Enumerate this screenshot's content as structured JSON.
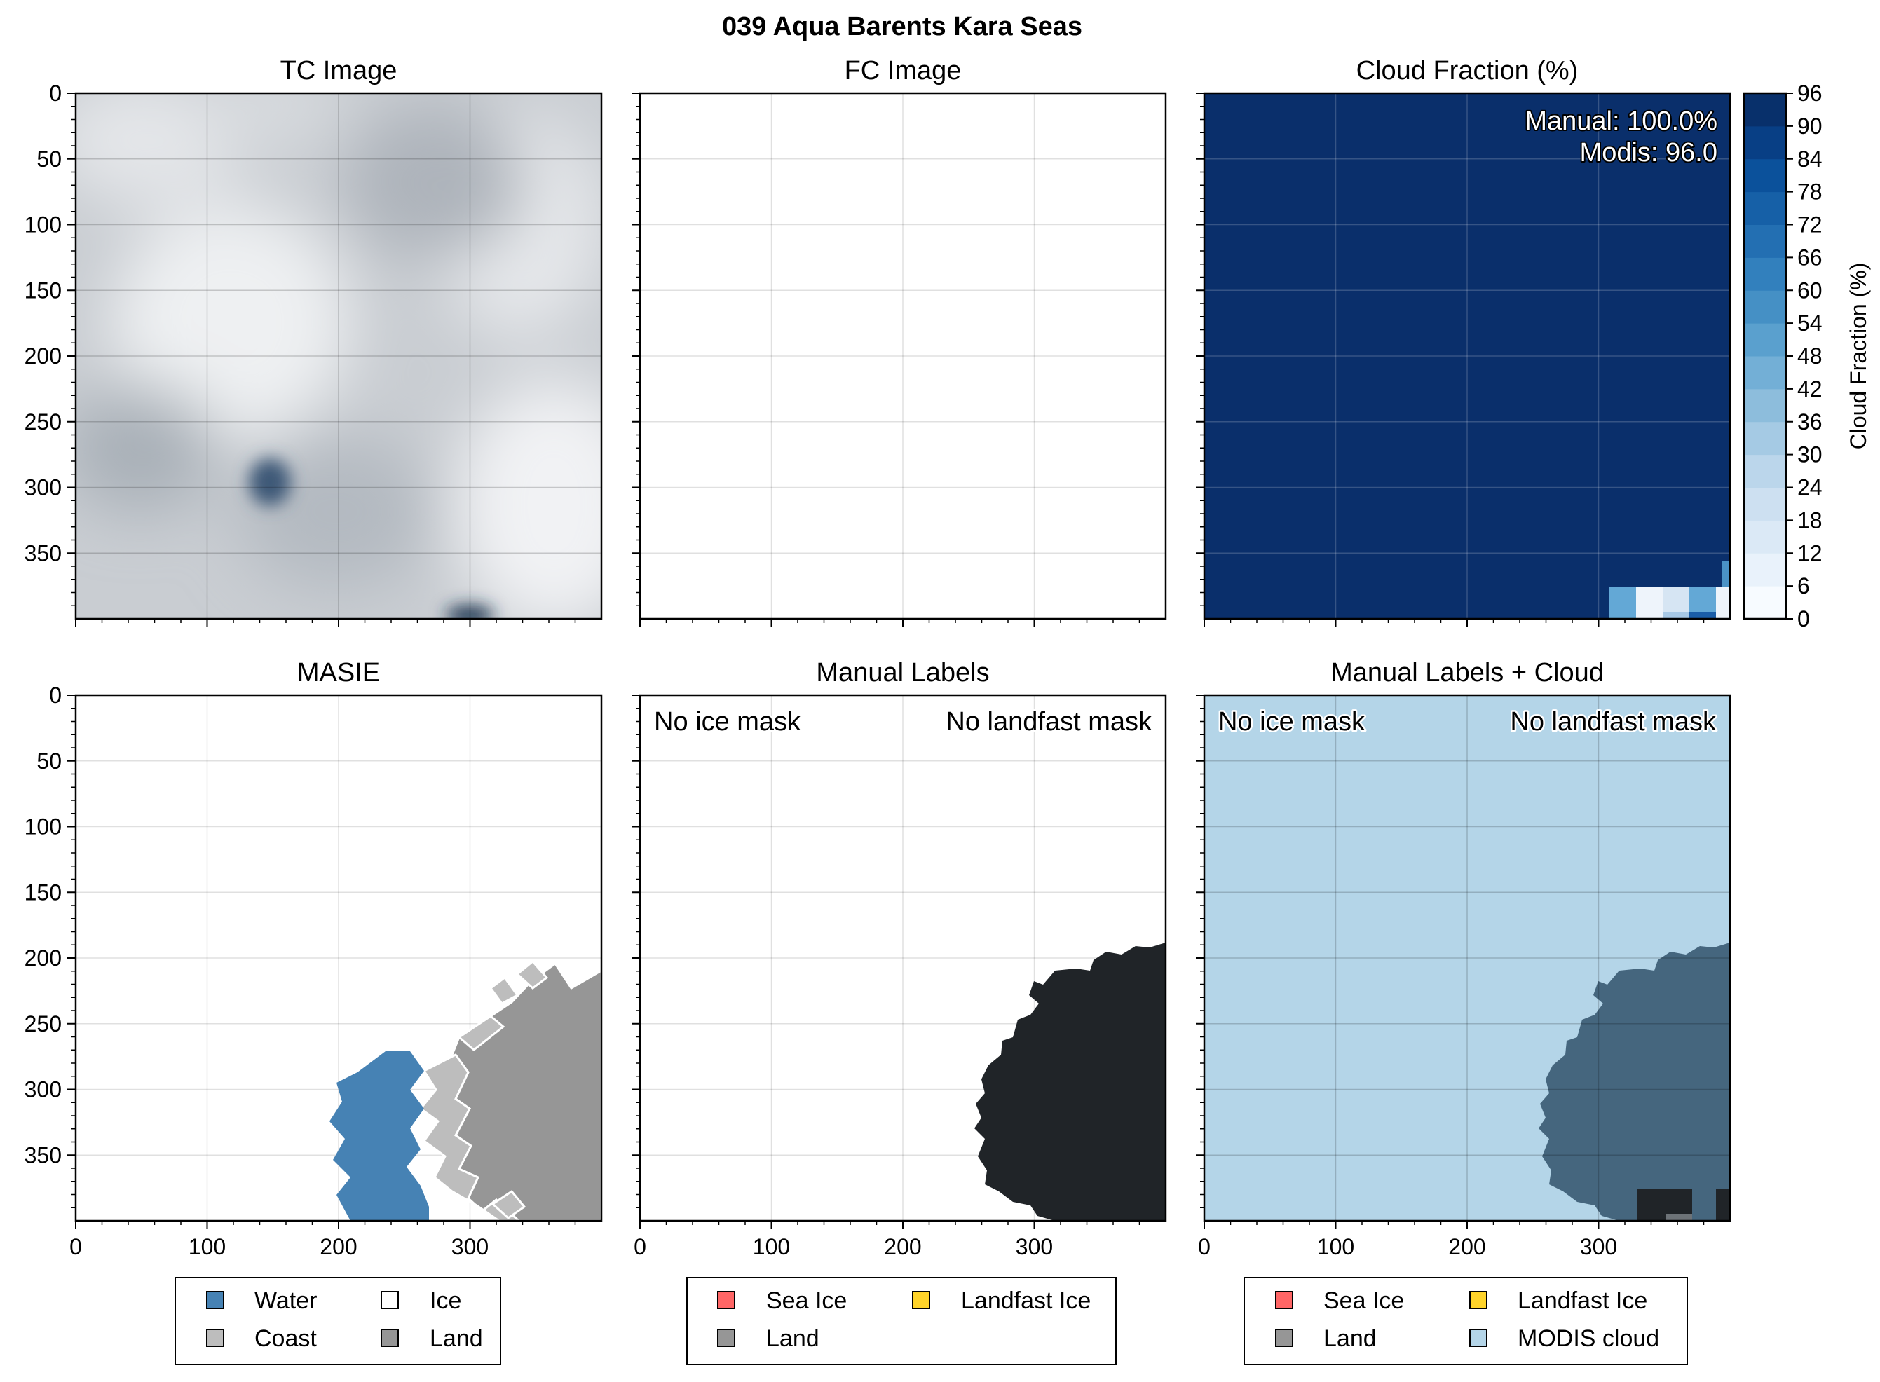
{
  "figure": {
    "title": "039 Aqua Barents Kara Seas"
  },
  "chart_data": [
    {
      "type": "heatmap",
      "title": "TC Image",
      "xticks": [
        0,
        100,
        200,
        300
      ],
      "yticks": [
        0,
        50,
        100,
        150,
        200,
        250,
        300,
        350
      ],
      "xlim": [
        0,
        400
      ],
      "ylim": [
        400,
        0
      ],
      "grid": true
    },
    {
      "type": "heatmap",
      "title": "FC Image",
      "xticks": [
        0,
        100,
        200,
        300
      ],
      "yticks": [
        0,
        50,
        100,
        150,
        200,
        250,
        300,
        350
      ],
      "xlim": [
        0,
        400
      ],
      "ylim": [
        400,
        0
      ],
      "grid": true
    },
    {
      "type": "heatmap",
      "title": "Cloud Fraction (%)",
      "annotations": [
        "Manual: 100.0%",
        "Modis: 96.0"
      ],
      "colorbar": {
        "label": "Cloud Fraction (%)",
        "ticks": [
          0,
          6,
          12,
          18,
          24,
          30,
          36,
          42,
          48,
          54,
          60,
          66,
          72,
          78,
          84,
          90,
          96
        ],
        "range": [
          0,
          96
        ]
      },
      "xlim": [
        0,
        400
      ],
      "ylim": [
        400,
        0
      ],
      "grid": true
    },
    {
      "type": "heatmap",
      "title": "MASIE",
      "xticks": [
        0,
        100,
        200,
        300
      ],
      "yticks": [
        0,
        50,
        100,
        150,
        200,
        250,
        300,
        350
      ],
      "legend": [
        "Water",
        "Ice",
        "Coast",
        "Land"
      ],
      "legend_placement": "bottom",
      "xlim": [
        0,
        400
      ],
      "ylim": [
        400,
        0
      ],
      "grid": true
    },
    {
      "type": "heatmap",
      "title": "Manual Labels",
      "annotations": [
        "No ice mask",
        "No landfast mask"
      ],
      "xticks": [
        0,
        100,
        200,
        300
      ],
      "legend": [
        "Sea Ice",
        "Landfast Ice",
        "Land"
      ],
      "legend_placement": "bottom",
      "xlim": [
        0,
        400
      ],
      "ylim": [
        400,
        0
      ],
      "grid": true
    },
    {
      "type": "heatmap",
      "title": "Manual Labels + Cloud",
      "annotations": [
        "No ice mask",
        "No landfast mask"
      ],
      "xticks": [
        0,
        100,
        200,
        300
      ],
      "legend": [
        "Sea Ice",
        "Landfast Ice",
        "Land",
        "MODIS cloud"
      ],
      "legend_placement": "bottom",
      "xlim": [
        0,
        400
      ],
      "ylim": [
        400,
        0
      ],
      "grid": true
    }
  ],
  "colors": {
    "water": "#4682b4",
    "coast": "#bdbdbd",
    "land": "#969696",
    "ice": "#ffffff",
    "sea_ice": "#ff6666",
    "landfast_ice": "#ffd42a",
    "modis_cloud": "#b4d5e8",
    "manual_land": "#202428",
    "cloud_dark": "#0a2f6b"
  }
}
